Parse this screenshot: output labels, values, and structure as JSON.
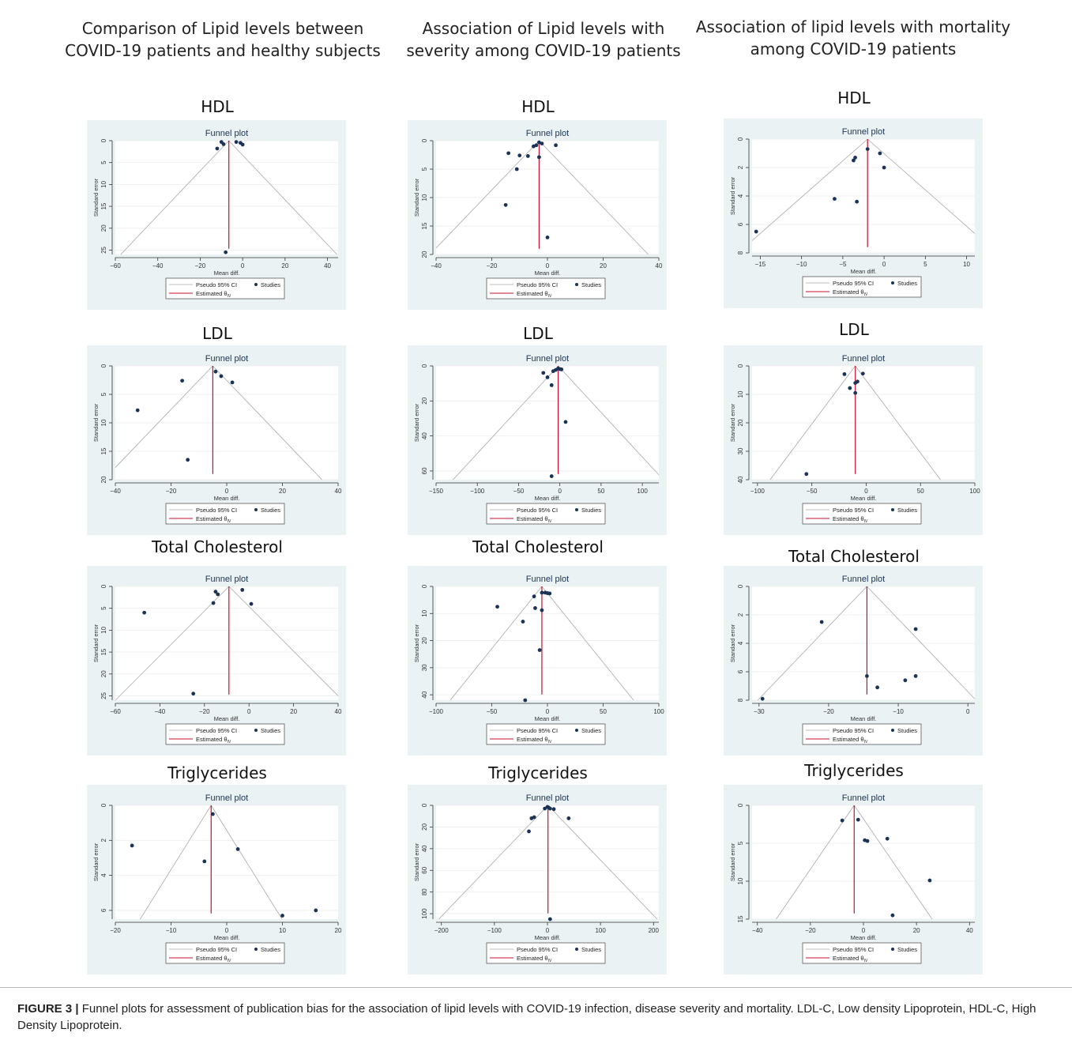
{
  "columns": [
    "Comparison of Lipid levels between\nCOVID-19 patients and healthy subjects",
    "Association of Lipid levels with\nseverity among COVID-19 patients",
    "Association of lipid levels with mortality\namong COVID-19 patients"
  ],
  "plot_text": {
    "title": "Funnel plot",
    "xlabel": "Mean diff.",
    "ylabel": "Standard error",
    "legend_ci": "Pseudo 95% CI",
    "legend_studies": "Studies",
    "legend_est": "Estimated θ",
    "legend_est_sub": "IV"
  },
  "colors": {
    "panel_bg": "#eaf2f3",
    "point": "#1a3357",
    "estimate": "#c8102e",
    "ci": "#a8a8a8"
  },
  "caption": {
    "label": "FIGURE 3 |",
    "text": " Funnel plots for assessment of publication bias for the association of lipid levels with COVID-19 infection, disease severity and mortality. LDL-C, Low density Lipoprotein, HDL-C, High Density Lipoprotein."
  },
  "chart_data": [
    {
      "type": "scatter",
      "row": "HDL",
      "col": 0,
      "title": "HDL",
      "xlim": [
        -60,
        45
      ],
      "xticks": [
        -60,
        -40,
        -20,
        0,
        20,
        40
      ],
      "ylim": [
        0,
        26
      ],
      "yticks": [
        0,
        5,
        10,
        15,
        20,
        25
      ],
      "theta": -6.5,
      "points": [
        [
          -10,
          0.3
        ],
        [
          -9,
          0.8
        ],
        [
          -3,
          0.3
        ],
        [
          -1,
          0.5
        ],
        [
          0,
          0.9
        ],
        [
          -12,
          1.8
        ],
        [
          -8,
          25.5
        ]
      ]
    },
    {
      "type": "scatter",
      "row": "HDL",
      "col": 1,
      "title": "HDL",
      "xlim": [
        -40,
        40
      ],
      "xticks": [
        -40,
        -20,
        0,
        20,
        40
      ],
      "ylim": [
        0,
        20
      ],
      "yticks": [
        0,
        5,
        10,
        15,
        20
      ],
      "theta": -3,
      "points": [
        [
          -3,
          0.3
        ],
        [
          -2,
          0.5
        ],
        [
          -4,
          0.8
        ],
        [
          -5,
          1.0
        ],
        [
          3,
          0.8
        ],
        [
          -14,
          2.2
        ],
        [
          -10,
          2.6
        ],
        [
          -7,
          2.7
        ],
        [
          -3,
          2.9
        ],
        [
          -11,
          5.0
        ],
        [
          -15,
          11.3
        ],
        [
          0,
          17
        ]
      ]
    },
    {
      "type": "scatter",
      "row": "HDL",
      "col": 2,
      "title": "HDL",
      "xlim": [
        -16,
        11
      ],
      "xticks": [
        -15,
        -10,
        -5,
        0,
        5,
        10
      ],
      "ylim": [
        0,
        8
      ],
      "yticks": [
        0,
        2,
        4,
        6,
        8
      ],
      "theta": -2,
      "points": [
        [
          -2,
          0.7
        ],
        [
          -0.5,
          1.0
        ],
        [
          0,
          2.0
        ],
        [
          -3.5,
          1.3
        ],
        [
          -3.7,
          1.5
        ],
        [
          -6,
          4.2
        ],
        [
          -3.3,
          4.4
        ],
        [
          -15.5,
          6.5
        ]
      ]
    },
    {
      "type": "scatter",
      "row": "LDL",
      "col": 0,
      "title": "LDL",
      "xlim": [
        -40,
        40
      ],
      "xticks": [
        -40,
        -20,
        0,
        20,
        40
      ],
      "ylim": [
        0,
        20
      ],
      "yticks": [
        0,
        5,
        10,
        15,
        20
      ],
      "theta": -5,
      "points": [
        [
          -4,
          1.0
        ],
        [
          -2,
          1.8
        ],
        [
          2,
          2.9
        ],
        [
          -16,
          2.6
        ],
        [
          -32,
          7.8
        ],
        [
          -14,
          16.5
        ]
      ]
    },
    {
      "type": "scatter",
      "row": "LDL",
      "col": 1,
      "title": "LDL",
      "xlim": [
        -150,
        120
      ],
      "xticks": [
        -150,
        -100,
        -50,
        0,
        50,
        100
      ],
      "ylim": [
        0,
        65
      ],
      "yticks": [
        0,
        20,
        40,
        60
      ],
      "theta": -2,
      "points": [
        [
          -2,
          1.5
        ],
        [
          0,
          1.8
        ],
        [
          2,
          2.0
        ],
        [
          -5,
          2.3
        ],
        [
          -8,
          3.0
        ],
        [
          -20,
          4.0
        ],
        [
          -15,
          6.5
        ],
        [
          -10,
          11.0
        ],
        [
          7,
          32
        ],
        [
          -10,
          63
        ]
      ]
    },
    {
      "type": "scatter",
      "row": "LDL",
      "col": 2,
      "title": "LDL",
      "xlim": [
        -105,
        100
      ],
      "xticks": [
        -100,
        -50,
        0,
        50,
        100
      ],
      "ylim": [
        0,
        40
      ],
      "yticks": [
        0,
        10,
        20,
        30,
        40
      ],
      "theta": -10,
      "points": [
        [
          -3,
          2.7
        ],
        [
          -20,
          2.9
        ],
        [
          -8,
          5.5
        ],
        [
          -10,
          6.0
        ],
        [
          -15,
          7.8
        ],
        [
          -10,
          9.5
        ],
        [
          -55,
          38
        ]
      ]
    },
    {
      "type": "scatter",
      "row": "Total Cholesterol",
      "col": 0,
      "title": "Total Cholesterol",
      "xlim": [
        -60,
        40
      ],
      "xticks": [
        -60,
        -40,
        -20,
        0,
        20,
        40
      ],
      "ylim": [
        0,
        26
      ],
      "yticks": [
        0,
        5,
        10,
        15,
        20,
        25
      ],
      "theta": -9,
      "points": [
        [
          -3,
          0.8
        ],
        [
          -15,
          1.2
        ],
        [
          -14,
          1.8
        ],
        [
          -16,
          3.8
        ],
        [
          1,
          4.0
        ],
        [
          -47,
          6.0
        ],
        [
          -25,
          24.5
        ]
      ]
    },
    {
      "type": "scatter",
      "row": "Total Cholesterol",
      "col": 1,
      "title": "Total Cholesterol",
      "xlim": [
        -100,
        100
      ],
      "xticks": [
        -100,
        -50,
        0,
        50,
        100
      ],
      "ylim": [
        0,
        42
      ],
      "yticks": [
        0,
        10,
        20,
        30,
        40
      ],
      "theta": -5,
      "points": [
        [
          -5,
          2.3
        ],
        [
          -2,
          2.3
        ],
        [
          0,
          2.5
        ],
        [
          2,
          2.6
        ],
        [
          -12,
          3.7
        ],
        [
          -11,
          8.0
        ],
        [
          -45,
          7.5
        ],
        [
          -5,
          8.8
        ],
        [
          -22,
          13.0
        ],
        [
          -7,
          23.5
        ],
        [
          -20,
          42
        ]
      ]
    },
    {
      "type": "scatter",
      "row": "Total Cholesterol",
      "col": 2,
      "title": "Total Cholesterol",
      "xlim": [
        -31,
        1
      ],
      "xticks": [
        -30,
        -20,
        -10,
        0
      ],
      "ylim": [
        0,
        8
      ],
      "yticks": [
        0,
        2,
        4,
        6,
        8
      ],
      "theta": -14.5,
      "points": [
        [
          -21,
          2.5
        ],
        [
          -7.5,
          3.0
        ],
        [
          -14.5,
          6.3
        ],
        [
          -7.5,
          6.3
        ],
        [
          -9,
          6.6
        ],
        [
          -13,
          7.1
        ],
        [
          -29.5,
          7.9
        ]
      ]
    },
    {
      "type": "scatter",
      "row": "Triglycerides",
      "col": 0,
      "title": "Triglycerides",
      "xlim": [
        -20,
        20
      ],
      "xticks": [
        -20,
        -10,
        0,
        10,
        20
      ],
      "ylim": [
        0,
        6.5
      ],
      "yticks": [
        0,
        2,
        4,
        6
      ],
      "theta": -2.8,
      "points": [
        [
          -2.5,
          0.5
        ],
        [
          -17,
          2.3
        ],
        [
          2,
          2.5
        ],
        [
          -4,
          3.2
        ],
        [
          10,
          6.3
        ],
        [
          16,
          6.0
        ]
      ]
    },
    {
      "type": "scatter",
      "row": "Triglycerides",
      "col": 1,
      "title": "Triglycerides",
      "xlim": [
        -210,
        210
      ],
      "xticks": [
        -200,
        -100,
        0,
        100,
        200
      ],
      "ylim": [
        0,
        105
      ],
      "yticks": [
        0,
        20,
        40,
        60,
        80,
        100
      ],
      "theta": 1,
      "points": [
        [
          0,
          1.5
        ],
        [
          2,
          2.0
        ],
        [
          -5,
          3.0
        ],
        [
          5,
          3.0
        ],
        [
          12,
          3.5
        ],
        [
          -25,
          11
        ],
        [
          -30,
          12
        ],
        [
          40,
          12
        ],
        [
          -35,
          24
        ],
        [
          5,
          105
        ]
      ]
    },
    {
      "type": "scatter",
      "row": "Triglycerides",
      "col": 2,
      "title": "Triglycerides",
      "xlim": [
        -42,
        42
      ],
      "xticks": [
        -40,
        -20,
        0,
        20,
        40
      ],
      "ylim": [
        0,
        15
      ],
      "yticks": [
        0,
        5,
        10,
        15
      ],
      "theta": -3.5,
      "points": [
        [
          -8,
          2.0
        ],
        [
          -2,
          1.9
        ],
        [
          0.5,
          4.6
        ],
        [
          1.5,
          4.7
        ],
        [
          9,
          4.4
        ],
        [
          25,
          9.9
        ],
        [
          11,
          14.5
        ]
      ]
    }
  ]
}
